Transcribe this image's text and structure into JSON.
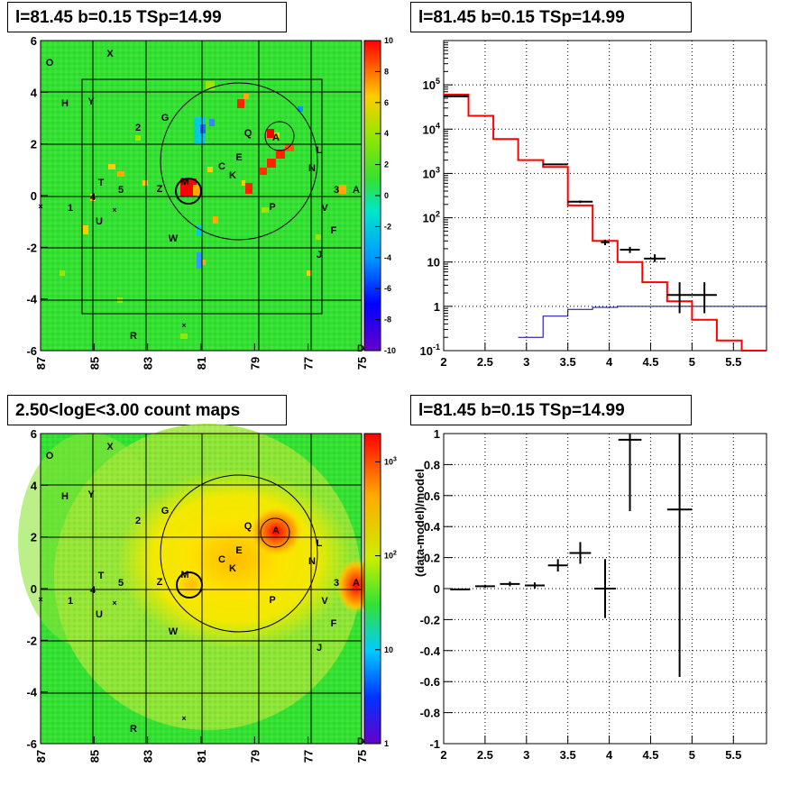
{
  "titles": {
    "top_left": "l=81.45 b=0.15 TSp=14.99",
    "top_right": "l=81.45 b=0.15 TSp=14.99",
    "bottom_left": "2.50<logE<3.00 count maps",
    "bottom_right": "l=81.45 b=0.15 TSp=14.99"
  },
  "colors": {
    "map_bg": "#33e133",
    "map_bg_low": "#a8e63b",
    "hot": "#ff1a00",
    "spectrum_model": "#ff0000",
    "background_model": "#000099",
    "data": "#000000"
  },
  "chart_data": [
    {
      "type": "heatmap",
      "name": "TS map",
      "x_ticks": [
        "87",
        "85",
        "83",
        "81",
        "79",
        "77",
        "75"
      ],
      "y_ticks": [
        "6",
        "4",
        "2",
        "0",
        "-2",
        "-4",
        "-6"
      ],
      "colorbar_ticks": [
        "10",
        "8",
        "6",
        "4",
        "2",
        "0",
        "-2",
        "-4",
        "-6",
        "-8",
        "-10"
      ],
      "colorbar_range": [
        -10,
        10
      ],
      "sources": [
        "O",
        "X",
        "H",
        "Y",
        "G",
        "2",
        "Q",
        "A",
        "L",
        "N",
        "C",
        "E",
        "K",
        "M",
        "Z",
        "T",
        "5",
        "4",
        "1",
        "U",
        "W",
        "P",
        "V",
        "3",
        "A",
        "F",
        "J",
        "R",
        "D"
      ]
    },
    {
      "type": "line",
      "name": "spectrum",
      "xlim": [
        2,
        5.9
      ],
      "ylim_log": [
        0.1,
        1000000
      ],
      "x_ticks": [
        "2",
        "2.5",
        "3",
        "3.5",
        "4",
        "4.5",
        "5",
        "5.5"
      ],
      "y_ticks": [
        "10^5",
        "10^4",
        "10^3",
        "10^2",
        "10",
        "1",
        "10^-1"
      ],
      "model_steps": [
        [
          2.0,
          60000
        ],
        [
          2.3,
          60000
        ],
        [
          2.3,
          20000
        ],
        [
          2.6,
          20000
        ],
        [
          2.6,
          6000
        ],
        [
          2.9,
          6000
        ],
        [
          2.9,
          2000
        ],
        [
          3.2,
          2000
        ],
        [
          3.2,
          1400
        ],
        [
          3.5,
          1400
        ],
        [
          3.5,
          190
        ],
        [
          3.8,
          190
        ],
        [
          3.8,
          30
        ],
        [
          4.1,
          30
        ],
        [
          4.1,
          10
        ],
        [
          4.4,
          10
        ],
        [
          4.4,
          3.5
        ],
        [
          4.7,
          3.5
        ],
        [
          4.7,
          1.3
        ],
        [
          5.0,
          1.3
        ],
        [
          5.0,
          0.5
        ],
        [
          5.3,
          0.5
        ],
        [
          5.3,
          0.17
        ],
        [
          5.6,
          0.17
        ],
        [
          5.6,
          0.1
        ],
        [
          5.9,
          0.1
        ]
      ],
      "background_steps": [
        [
          2.9,
          0.2
        ],
        [
          3.2,
          0.2
        ],
        [
          3.2,
          0.6
        ],
        [
          3.5,
          0.6
        ],
        [
          3.5,
          0.85
        ],
        [
          3.8,
          0.85
        ],
        [
          3.8,
          0.95
        ],
        [
          4.1,
          0.95
        ],
        [
          4.1,
          1.0
        ],
        [
          5.9,
          1.0
        ]
      ],
      "data_points": [
        {
          "x": 2.15,
          "y": 55000,
          "xerr": 0.15,
          "ylo": 55000,
          "yhi": 55000
        },
        {
          "x": 3.35,
          "y": 1600,
          "xerr": 0.15,
          "ylo": 1550,
          "yhi": 1650
        },
        {
          "x": 3.65,
          "y": 230,
          "xerr": 0.15,
          "ylo": 215,
          "yhi": 245
        },
        {
          "x": 3.95,
          "y": 28,
          "xerr": 0.05,
          "ylo": 24,
          "yhi": 32
        },
        {
          "x": 4.25,
          "y": 19,
          "xerr": 0.12,
          "ylo": 16,
          "yhi": 22
        },
        {
          "x": 4.55,
          "y": 12,
          "xerr": 0.13,
          "ylo": 10,
          "yhi": 15
        },
        {
          "x": 4.85,
          "y": 1.8,
          "xerr": 0.15,
          "ylo": 0.7,
          "yhi": 3.5
        },
        {
          "x": 5.15,
          "y": 1.8,
          "xerr": 0.15,
          "ylo": 0.7,
          "yhi": 3.5
        }
      ]
    },
    {
      "type": "heatmap",
      "name": "count map",
      "x_ticks": [
        "87",
        "85",
        "83",
        "81",
        "79",
        "77",
        "75"
      ],
      "y_ticks": [
        "6",
        "4",
        "2",
        "0",
        "-2",
        "-4",
        "-6"
      ],
      "colorbar_ticks": [
        "10^3",
        "10^2",
        "10",
        "1"
      ],
      "colorbar_range_log": [
        1,
        2000
      ]
    },
    {
      "type": "scatter",
      "name": "residuals",
      "xlim": [
        2,
        5.9
      ],
      "ylim": [
        -1,
        1
      ],
      "ylabel": "(data-model)/model",
      "x_ticks": [
        "2",
        "2.5",
        "3",
        "3.5",
        "4",
        "4.5",
        "5",
        "5.5"
      ],
      "y_ticks": [
        "1",
        "0.8",
        "0.6",
        "0.4",
        "0.2",
        "0",
        "-0.2",
        "-0.4",
        "-0.6",
        "-0.8",
        "-1"
      ],
      "points": [
        {
          "x": 2.2,
          "y": -0.005,
          "xerr": 0.12,
          "yerr": 0.005
        },
        {
          "x": 2.5,
          "y": 0.015,
          "xerr": 0.12,
          "yerr": 0.01
        },
        {
          "x": 2.8,
          "y": 0.03,
          "xerr": 0.12,
          "yerr": 0.015
        },
        {
          "x": 3.1,
          "y": 0.02,
          "xerr": 0.12,
          "yerr": 0.02
        },
        {
          "x": 3.38,
          "y": 0.15,
          "xerr": 0.12,
          "yerr": 0.04
        },
        {
          "x": 3.65,
          "y": 0.23,
          "xerr": 0.13,
          "yerr": 0.07
        },
        {
          "x": 3.95,
          "y": 0.0,
          "xerr": 0.13,
          "yerr": 0.19
        },
        {
          "x": 4.25,
          "y": 0.96,
          "xerr": 0.14,
          "yerr": 0.46
        },
        {
          "x": 4.85,
          "y": 0.51,
          "xerr": 0.15,
          "yerr": 1.08
        }
      ]
    }
  ]
}
